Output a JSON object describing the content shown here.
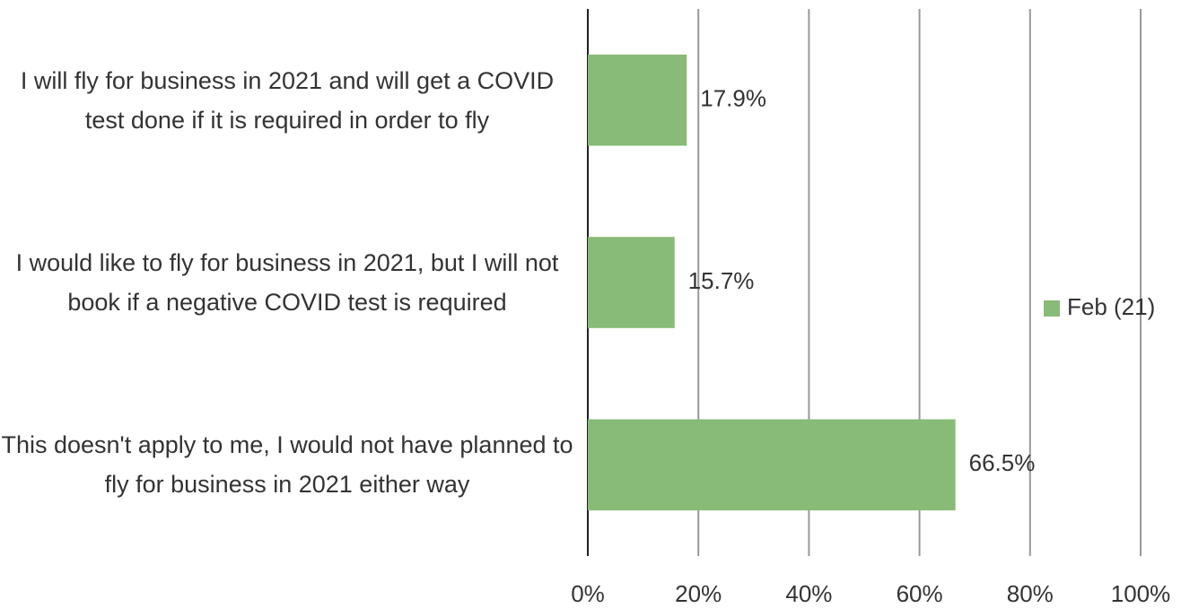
{
  "chart_data": {
    "type": "barh",
    "categories": [
      "I will fly for business in 2021 and will get a COVID test done if it is required in order to fly",
      "I would like to fly for business in 2021, but I will not book if a negative COVID test is required",
      "This doesn't apply to me, I would not have planned to fly for business in 2021 either way"
    ],
    "series": [
      {
        "name": "Feb (21)",
        "color": "#88bb77",
        "values": [
          17.9,
          15.7,
          66.5
        ],
        "value_labels": [
          "17.9%",
          "15.7%",
          "66.5%"
        ]
      }
    ],
    "xlim": [
      0,
      100
    ],
    "xticks": [
      {
        "value": 0,
        "label": "0%"
      },
      {
        "value": 20,
        "label": "20%"
      },
      {
        "value": 40,
        "label": "40%"
      },
      {
        "value": 60,
        "label": "60%"
      },
      {
        "value": 80,
        "label": "80%"
      },
      {
        "value": 100,
        "label": "100%"
      }
    ],
    "grid": true,
    "legend": "right"
  }
}
